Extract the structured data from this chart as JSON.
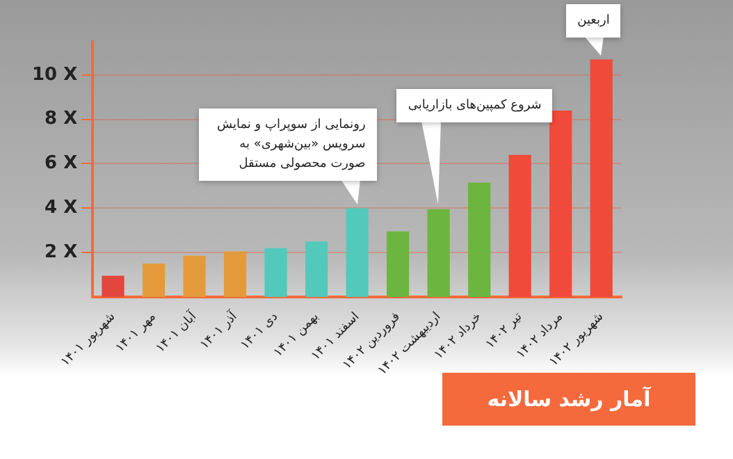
{
  "chart_data": {
    "type": "bar",
    "title": "آمار رشد سالانه",
    "categories": [
      "شهریور ۱۴۰۱",
      "مهر ۱۴۰۱",
      "آبان ۱۴۰۱",
      "آذر ۱۴۰۱",
      "دی ۱۴۰۱",
      "بهمن ۱۴۰۱",
      "اسفند ۱۴۰۱",
      "فروردین ۱۴۰۲",
      "اردیبهشت ۱۴۰۲",
      "خرداد ۱۴۰۲",
      "تیر ۱۴۰۲",
      "مرداد ۱۴۰۲",
      "شهریور ۱۴۰۲"
    ],
    "values": [
      0.95,
      1.5,
      1.85,
      2.05,
      2.2,
      2.5,
      4.0,
      2.95,
      3.95,
      5.15,
      6.4,
      8.4,
      10.7
    ],
    "colors": [
      "#e2463c",
      "#e49a3b",
      "#e49a3b",
      "#e49a3b",
      "#52c9bb",
      "#52c9bb",
      "#52c9bb",
      "#6cb53f",
      "#6cb53f",
      "#6cb53f",
      "#ef4a3a",
      "#ef4a3a",
      "#ef4a3a"
    ],
    "ylim": [
      0,
      11.5
    ],
    "yticks": [
      {
        "value": 2,
        "label": "2 X"
      },
      {
        "value": 4,
        "label": "4 X"
      },
      {
        "value": 6,
        "label": "6 X"
      },
      {
        "value": 8,
        "label": "8 X"
      },
      {
        "value": 10,
        "label": "10 X"
      }
    ],
    "grid": "y",
    "annotations": [
      {
        "text": "رونمایی از سوپراپ و نمایش سرویس «بین‌شهری» به صورت محصولی مستقل",
        "x": "اسفند ۱۴۰۱",
        "y": 4.0
      },
      {
        "text": "شروع کمپین‌های بازاریابی",
        "x": "اردیبهشت ۱۴۰۲",
        "y": 3.95
      },
      {
        "text": "اربعین",
        "x": "شهریور ۱۴۰۲",
        "y": 10.7
      }
    ]
  }
}
